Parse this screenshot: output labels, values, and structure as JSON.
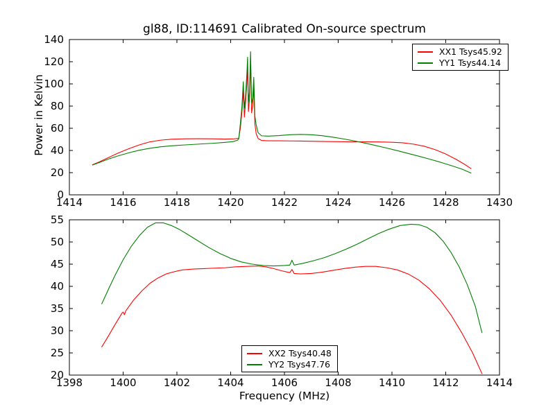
{
  "figure": {
    "background": "#ffffff",
    "frame_color": "#000000"
  },
  "chart_data": [
    {
      "type": "line",
      "title": "gl88, ID:114691 Calibrated On-source spectrum",
      "xlabel": "",
      "ylabel": "Power in Kelvin",
      "xlim": [
        1414,
        1430
      ],
      "ylim": [
        0,
        140
      ],
      "xticks": [
        1414,
        1416,
        1418,
        1420,
        1422,
        1424,
        1426,
        1428,
        1430
      ],
      "yticks": [
        0,
        20,
        40,
        60,
        80,
        100,
        120,
        140
      ],
      "grid": false,
      "legend_position": "upper right",
      "series": [
        {
          "name": "XX1 Tsys45.92",
          "color": "#ff0000",
          "points": [
            [
              1414.85,
              27
            ],
            [
              1415.1,
              29.5
            ],
            [
              1415.4,
              33
            ],
            [
              1415.8,
              37.5
            ],
            [
              1416.2,
              41.5
            ],
            [
              1416.6,
              45
            ],
            [
              1417.0,
              47.8
            ],
            [
              1417.4,
              49.3
            ],
            [
              1417.8,
              50.1
            ],
            [
              1418.3,
              50.5
            ],
            [
              1418.8,
              50.6
            ],
            [
              1419.3,
              50.5
            ],
            [
              1419.8,
              50.3
            ],
            [
              1420.1,
              50.4
            ],
            [
              1420.25,
              50.8
            ],
            [
              1420.3,
              51
            ],
            [
              1420.36,
              60
            ],
            [
              1420.42,
              75
            ],
            [
              1420.47,
              94
            ],
            [
              1420.51,
              70
            ],
            [
              1420.55,
              82
            ],
            [
              1420.6,
              100
            ],
            [
              1420.63,
              116
            ],
            [
              1420.66,
              75
            ],
            [
              1420.7,
              86
            ],
            [
              1420.74,
              121
            ],
            [
              1420.78,
              74
            ],
            [
              1420.82,
              80
            ],
            [
              1420.86,
              98
            ],
            [
              1420.9,
              64
            ],
            [
              1420.95,
              55
            ],
            [
              1421.02,
              50.8
            ],
            [
              1421.15,
              49
            ],
            [
              1421.4,
              48.7
            ],
            [
              1421.8,
              48.7
            ],
            [
              1422.2,
              48.6
            ],
            [
              1422.6,
              48.5
            ],
            [
              1423.0,
              48.3
            ],
            [
              1423.5,
              48.1
            ],
            [
              1424.0,
              47.9
            ],
            [
              1424.5,
              47.8
            ],
            [
              1425.0,
              47.8
            ],
            [
              1425.5,
              47.7
            ],
            [
              1426.0,
              47.4
            ],
            [
              1426.4,
              46.9
            ],
            [
              1426.8,
              45.7
            ],
            [
              1427.2,
              43.8
            ],
            [
              1427.6,
              40.8
            ],
            [
              1428.0,
              36.8
            ],
            [
              1428.4,
              31.8
            ],
            [
              1428.7,
              27.5
            ],
            [
              1428.95,
              23.5
            ]
          ]
        },
        {
          "name": "YY1 Tsys44.14",
          "color": "#007f00",
          "points": [
            [
              1414.85,
              26.8
            ],
            [
              1415.1,
              29
            ],
            [
              1415.4,
              31.8
            ],
            [
              1415.8,
              35
            ],
            [
              1416.2,
              37.8
            ],
            [
              1416.6,
              40.2
            ],
            [
              1417.0,
              42
            ],
            [
              1417.4,
              43.3
            ],
            [
              1417.8,
              44.2
            ],
            [
              1418.3,
              45
            ],
            [
              1418.8,
              45.7
            ],
            [
              1419.3,
              46.4
            ],
            [
              1419.8,
              47.3
            ],
            [
              1420.1,
              48
            ],
            [
              1420.25,
              49.2
            ],
            [
              1420.3,
              50.5
            ],
            [
              1420.36,
              64
            ],
            [
              1420.42,
              80
            ],
            [
              1420.47,
              102
            ],
            [
              1420.51,
              78
            ],
            [
              1420.55,
              88
            ],
            [
              1420.6,
              108
            ],
            [
              1420.63,
              124
            ],
            [
              1420.66,
              83
            ],
            [
              1420.7,
              93
            ],
            [
              1420.74,
              129
            ],
            [
              1420.78,
              82
            ],
            [
              1420.82,
              87
            ],
            [
              1420.86,
              106
            ],
            [
              1420.9,
              71
            ],
            [
              1420.95,
              63
            ],
            [
              1421.02,
              56
            ],
            [
              1421.15,
              53.2
            ],
            [
              1421.4,
              52.9
            ],
            [
              1421.8,
              53.4
            ],
            [
              1422.2,
              54.2
            ],
            [
              1422.6,
              54.5
            ],
            [
              1423.0,
              54.2
            ],
            [
              1423.4,
              53.3
            ],
            [
              1423.8,
              52
            ],
            [
              1424.2,
              50.4
            ],
            [
              1424.6,
              48.6
            ],
            [
              1425.0,
              46.6
            ],
            [
              1425.4,
              44.4
            ],
            [
              1425.8,
              42.2
            ],
            [
              1426.2,
              39.8
            ],
            [
              1426.6,
              37.3
            ],
            [
              1427.0,
              34.8
            ],
            [
              1427.4,
              32.2
            ],
            [
              1427.8,
              29.4
            ],
            [
              1428.2,
              26.4
            ],
            [
              1428.6,
              23.2
            ],
            [
              1428.95,
              19.5
            ]
          ]
        }
      ]
    },
    {
      "type": "line",
      "title": "",
      "xlabel": "Frequency (MHz)",
      "ylabel": "",
      "xlim": [
        1398,
        1414
      ],
      "ylim": [
        20,
        55
      ],
      "xticks": [
        1398,
        1400,
        1402,
        1404,
        1406,
        1408,
        1410,
        1412,
        1414
      ],
      "yticks": [
        20,
        25,
        30,
        35,
        40,
        45,
        50,
        55
      ],
      "grid": false,
      "legend_position": "lower center",
      "series": [
        {
          "name": "XX2 Tsys40.48",
          "color": "#ff0000",
          "points": [
            [
              1399.2,
              26.3
            ],
            [
              1399.45,
              28.8
            ],
            [
              1399.7,
              31.4
            ],
            [
              1399.95,
              33.9
            ],
            [
              1400.0,
              34.2
            ],
            [
              1400.05,
              33.6
            ],
            [
              1400.1,
              34.5
            ],
            [
              1400.4,
              37.0
            ],
            [
              1400.7,
              39.0
            ],
            [
              1401.0,
              40.7
            ],
            [
              1401.3,
              41.9
            ],
            [
              1401.6,
              42.8
            ],
            [
              1401.9,
              43.3
            ],
            [
              1402.2,
              43.7
            ],
            [
              1402.6,
              43.9
            ],
            [
              1403.0,
              44.0
            ],
            [
              1403.4,
              44.1
            ],
            [
              1403.8,
              44.2
            ],
            [
              1404.2,
              44.4
            ],
            [
              1404.6,
              44.5
            ],
            [
              1405.0,
              44.6
            ],
            [
              1405.3,
              44.4
            ],
            [
              1405.6,
              44.0
            ],
            [
              1405.9,
              43.5
            ],
            [
              1406.2,
              43.1
            ],
            [
              1406.28,
              43.8
            ],
            [
              1406.36,
              42.9
            ],
            [
              1406.6,
              42.8
            ],
            [
              1407.0,
              42.9
            ],
            [
              1407.4,
              43.2
            ],
            [
              1407.8,
              43.6
            ],
            [
              1408.2,
              44.0
            ],
            [
              1408.6,
              44.3
            ],
            [
              1409.0,
              44.5
            ],
            [
              1409.4,
              44.5
            ],
            [
              1409.8,
              44.2
            ],
            [
              1410.2,
              43.7
            ],
            [
              1410.6,
              42.8
            ],
            [
              1411.0,
              41.4
            ],
            [
              1411.4,
              39.4
            ],
            [
              1411.8,
              36.8
            ],
            [
              1412.2,
              33.5
            ],
            [
              1412.6,
              29.5
            ],
            [
              1413.0,
              25.0
            ],
            [
              1413.35,
              20.3
            ]
          ]
        },
        {
          "name": "YY2 Tsys47.76",
          "color": "#007f00",
          "points": [
            [
              1399.2,
              36.0
            ],
            [
              1399.45,
              39.3
            ],
            [
              1399.7,
              42.5
            ],
            [
              1400.0,
              46.0
            ],
            [
              1400.3,
              49.0
            ],
            [
              1400.6,
              51.4
            ],
            [
              1400.9,
              53.3
            ],
            [
              1401.2,
              54.3
            ],
            [
              1401.5,
              54.3
            ],
            [
              1401.8,
              53.7
            ],
            [
              1402.1,
              52.8
            ],
            [
              1402.4,
              51.7
            ],
            [
              1402.8,
              50.2
            ],
            [
              1403.2,
              48.7
            ],
            [
              1403.6,
              47.4
            ],
            [
              1404.0,
              46.3
            ],
            [
              1404.4,
              45.5
            ],
            [
              1404.8,
              45.0
            ],
            [
              1405.2,
              44.7
            ],
            [
              1405.6,
              44.6
            ],
            [
              1406.0,
              44.7
            ],
            [
              1406.2,
              44.8
            ],
            [
              1406.28,
              45.9
            ],
            [
              1406.36,
              44.8
            ],
            [
              1406.7,
              45.2
            ],
            [
              1407.1,
              45.8
            ],
            [
              1407.5,
              46.5
            ],
            [
              1407.9,
              47.4
            ],
            [
              1408.3,
              48.4
            ],
            [
              1408.7,
              49.5
            ],
            [
              1409.1,
              50.7
            ],
            [
              1409.5,
              51.9
            ],
            [
              1409.9,
              52.9
            ],
            [
              1410.3,
              53.7
            ],
            [
              1410.7,
              54.0
            ],
            [
              1411.0,
              53.9
            ],
            [
              1411.3,
              53.3
            ],
            [
              1411.6,
              52.1
            ],
            [
              1411.9,
              50.2
            ],
            [
              1412.2,
              47.6
            ],
            [
              1412.5,
              44.4
            ],
            [
              1412.8,
              40.4
            ],
            [
              1413.1,
              35.5
            ],
            [
              1413.35,
              29.5
            ]
          ]
        }
      ]
    }
  ]
}
